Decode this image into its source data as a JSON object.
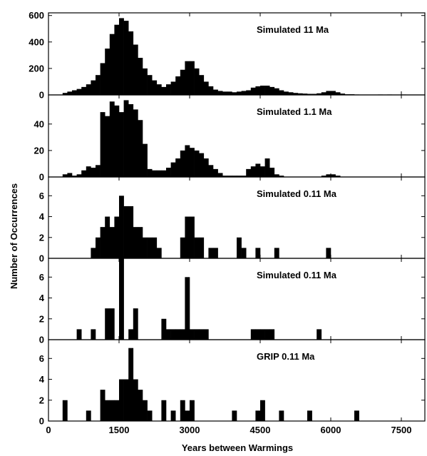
{
  "chart_data": {
    "type": "bar",
    "xlabel": "Years between Warmings",
    "ylabel": "Number of Occurrences",
    "xlim": [
      0,
      8000
    ],
    "xticks": [
      0,
      1500,
      3000,
      4500,
      6000,
      7500
    ],
    "bin_width": 100,
    "grid": false,
    "panels": [
      {
        "label": "Simulated 11 Ma",
        "ylim": [
          0,
          620
        ],
        "yticks": [
          0,
          200,
          400,
          600
        ],
        "bins": [
          [
            300,
            15
          ],
          [
            400,
            25
          ],
          [
            500,
            35
          ],
          [
            600,
            45
          ],
          [
            700,
            60
          ],
          [
            800,
            80
          ],
          [
            900,
            110
          ],
          [
            1000,
            150
          ],
          [
            1100,
            240
          ],
          [
            1200,
            350
          ],
          [
            1300,
            460
          ],
          [
            1400,
            530
          ],
          [
            1500,
            580
          ],
          [
            1600,
            560
          ],
          [
            1700,
            480
          ],
          [
            1800,
            380
          ],
          [
            1900,
            280
          ],
          [
            2000,
            200
          ],
          [
            2100,
            150
          ],
          [
            2200,
            110
          ],
          [
            2300,
            80
          ],
          [
            2400,
            60
          ],
          [
            2500,
            80
          ],
          [
            2600,
            100
          ],
          [
            2700,
            140
          ],
          [
            2800,
            190
          ],
          [
            2900,
            255
          ],
          [
            3000,
            255
          ],
          [
            3100,
            200
          ],
          [
            3200,
            150
          ],
          [
            3300,
            100
          ],
          [
            3400,
            65
          ],
          [
            3500,
            40
          ],
          [
            3600,
            30
          ],
          [
            3700,
            25
          ],
          [
            3800,
            25
          ],
          [
            3900,
            20
          ],
          [
            4000,
            25
          ],
          [
            4100,
            30
          ],
          [
            4200,
            35
          ],
          [
            4300,
            55
          ],
          [
            4400,
            65
          ],
          [
            4500,
            70
          ],
          [
            4600,
            70
          ],
          [
            4700,
            60
          ],
          [
            4800,
            50
          ],
          [
            4900,
            35
          ],
          [
            5000,
            25
          ],
          [
            5100,
            20
          ],
          [
            5200,
            15
          ],
          [
            5300,
            12
          ],
          [
            5400,
            10
          ],
          [
            5500,
            8
          ],
          [
            5600,
            8
          ],
          [
            5700,
            12
          ],
          [
            5800,
            20
          ],
          [
            5900,
            30
          ],
          [
            6000,
            30
          ],
          [
            6100,
            20
          ],
          [
            6200,
            10
          ],
          [
            6300,
            5
          ],
          [
            6400,
            5
          ],
          [
            6500,
            3
          ],
          [
            7000,
            3
          ],
          [
            7200,
            3
          ],
          [
            7500,
            3
          ],
          [
            7700,
            2
          ]
        ]
      },
      {
        "label": "Simulated 1.1 Ma",
        "ylim": [
          0,
          62
        ],
        "yticks": [
          0,
          20,
          40
        ],
        "bins": [
          [
            300,
            2
          ],
          [
            400,
            3
          ],
          [
            500,
            1
          ],
          [
            600,
            2
          ],
          [
            700,
            5
          ],
          [
            800,
            8
          ],
          [
            900,
            7
          ],
          [
            1000,
            9
          ],
          [
            1100,
            49
          ],
          [
            1200,
            46
          ],
          [
            1300,
            57
          ],
          [
            1400,
            54
          ],
          [
            1500,
            49
          ],
          [
            1600,
            58
          ],
          [
            1700,
            55
          ],
          [
            1800,
            51
          ],
          [
            1900,
            43
          ],
          [
            2000,
            25
          ],
          [
            2100,
            6
          ],
          [
            2200,
            5
          ],
          [
            2300,
            5
          ],
          [
            2400,
            5
          ],
          [
            2500,
            7
          ],
          [
            2600,
            11
          ],
          [
            2700,
            14
          ],
          [
            2800,
            20
          ],
          [
            2900,
            24
          ],
          [
            3000,
            22
          ],
          [
            3100,
            20
          ],
          [
            3200,
            18
          ],
          [
            3300,
            14
          ],
          [
            3400,
            9
          ],
          [
            3500,
            6
          ],
          [
            3600,
            3
          ],
          [
            3700,
            1
          ],
          [
            3800,
            1
          ],
          [
            3900,
            1
          ],
          [
            4000,
            1
          ],
          [
            4100,
            1
          ],
          [
            4200,
            6
          ],
          [
            4300,
            8
          ],
          [
            4400,
            10
          ],
          [
            4500,
            8
          ],
          [
            4600,
            14
          ],
          [
            4700,
            7
          ],
          [
            4800,
            2
          ],
          [
            4900,
            1
          ],
          [
            5800,
            1
          ],
          [
            5900,
            2
          ],
          [
            6000,
            2
          ],
          [
            6100,
            1
          ]
        ]
      },
      {
        "label": "Simulated 0.11 Ma",
        "ylim": [
          0,
          7.8
        ],
        "yticks": [
          0,
          2,
          4,
          6
        ],
        "bins": [
          [
            900,
            1
          ],
          [
            1000,
            2
          ],
          [
            1100,
            3
          ],
          [
            1200,
            4
          ],
          [
            1300,
            3
          ],
          [
            1400,
            4
          ],
          [
            1500,
            6
          ],
          [
            1600,
            5
          ],
          [
            1700,
            5
          ],
          [
            1800,
            3
          ],
          [
            1900,
            3
          ],
          [
            2000,
            2
          ],
          [
            2100,
            2
          ],
          [
            2200,
            2
          ],
          [
            2300,
            1
          ],
          [
            2800,
            2
          ],
          [
            2900,
            4
          ],
          [
            3000,
            4
          ],
          [
            3100,
            2
          ],
          [
            3200,
            2
          ],
          [
            3400,
            1
          ],
          [
            3500,
            1
          ],
          [
            4000,
            2
          ],
          [
            4100,
            1
          ],
          [
            4400,
            1
          ],
          [
            4800,
            1
          ],
          [
            5900,
            1
          ]
        ]
      },
      {
        "label": "Simulated 0.11 Ma",
        "ylim": [
          0,
          7.8
        ],
        "yticks": [
          0,
          2,
          4,
          6
        ],
        "bins": [
          [
            600,
            1
          ],
          [
            900,
            1
          ],
          [
            1200,
            3
          ],
          [
            1300,
            3
          ],
          [
            1500,
            8
          ],
          [
            1700,
            1
          ],
          [
            1800,
            3
          ],
          [
            2400,
            2
          ],
          [
            2500,
            1
          ],
          [
            2600,
            1
          ],
          [
            2700,
            1
          ],
          [
            2800,
            1
          ],
          [
            2900,
            6
          ],
          [
            3000,
            1
          ],
          [
            3100,
            1
          ],
          [
            3200,
            1
          ],
          [
            3300,
            1
          ],
          [
            4300,
            1
          ],
          [
            4400,
            1
          ],
          [
            4500,
            1
          ],
          [
            4600,
            1
          ],
          [
            4700,
            1
          ],
          [
            5700,
            1
          ]
        ]
      },
      {
        "label": "GRIP 0.11 Ma",
        "ylim": [
          0,
          7.8
        ],
        "yticks": [
          0,
          2,
          4,
          6
        ],
        "bins": [
          [
            300,
            2
          ],
          [
            800,
            1
          ],
          [
            1100,
            3
          ],
          [
            1200,
            2
          ],
          [
            1300,
            2
          ],
          [
            1400,
            2
          ],
          [
            1500,
            4
          ],
          [
            1600,
            4
          ],
          [
            1700,
            7
          ],
          [
            1800,
            4
          ],
          [
            1900,
            3
          ],
          [
            2000,
            2
          ],
          [
            2100,
            1
          ],
          [
            2400,
            2
          ],
          [
            2600,
            1
          ],
          [
            2800,
            2
          ],
          [
            2900,
            1
          ],
          [
            3000,
            2
          ],
          [
            3900,
            1
          ],
          [
            4400,
            1
          ],
          [
            4500,
            2
          ],
          [
            4900,
            1
          ],
          [
            5500,
            1
          ],
          [
            6500,
            1
          ]
        ]
      }
    ]
  }
}
